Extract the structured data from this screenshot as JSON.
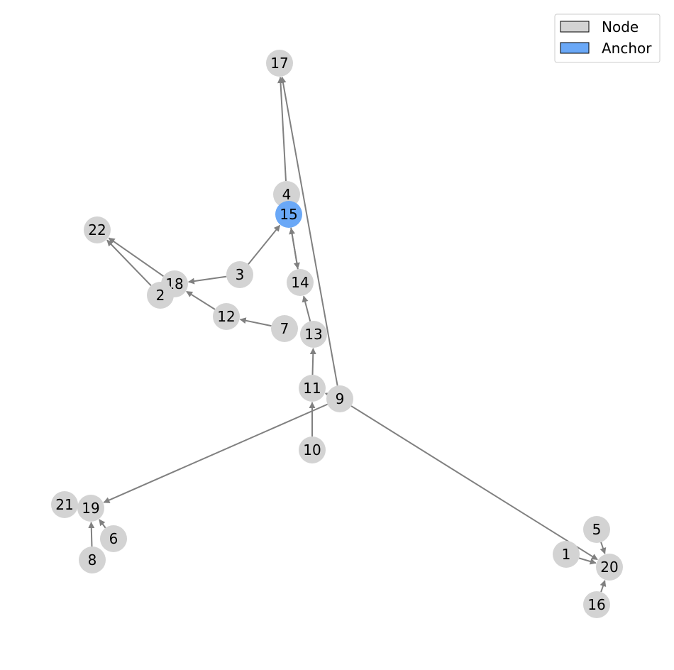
{
  "colors": {
    "node": "#d3d3d3",
    "anchor": "#6aa8f7",
    "edge": "#808080",
    "legend_border": "#cccccc"
  },
  "legend": {
    "position": "top-right",
    "items": [
      {
        "label": "Node",
        "color": "#d3d3d3"
      },
      {
        "label": "Anchor",
        "color": "#6aa8f7"
      }
    ]
  },
  "nodes": [
    {
      "id": "17",
      "type": "node"
    },
    {
      "id": "4",
      "type": "node"
    },
    {
      "id": "15",
      "type": "anchor"
    },
    {
      "id": "22",
      "type": "node"
    },
    {
      "id": "3",
      "type": "node"
    },
    {
      "id": "18",
      "type": "node"
    },
    {
      "id": "2",
      "type": "node"
    },
    {
      "id": "14",
      "type": "node"
    },
    {
      "id": "12",
      "type": "node"
    },
    {
      "id": "7",
      "type": "node"
    },
    {
      "id": "13",
      "type": "node"
    },
    {
      "id": "11",
      "type": "node"
    },
    {
      "id": "9",
      "type": "node"
    },
    {
      "id": "10",
      "type": "node"
    },
    {
      "id": "21",
      "type": "node"
    },
    {
      "id": "19",
      "type": "node"
    },
    {
      "id": "6",
      "type": "node"
    },
    {
      "id": "8",
      "type": "node"
    },
    {
      "id": "5",
      "type": "node"
    },
    {
      "id": "1",
      "type": "node"
    },
    {
      "id": "20",
      "type": "node"
    },
    {
      "id": "16",
      "type": "node"
    }
  ],
  "edges": [
    {
      "from": "4",
      "to": "17"
    },
    {
      "from": "9",
      "to": "17"
    },
    {
      "from": "3",
      "to": "15"
    },
    {
      "from": "15",
      "to": "14"
    },
    {
      "from": "14",
      "to": "15"
    },
    {
      "from": "3",
      "to": "18"
    },
    {
      "from": "18",
      "to": "22"
    },
    {
      "from": "2",
      "to": "22"
    },
    {
      "from": "12",
      "to": "18"
    },
    {
      "from": "7",
      "to": "12"
    },
    {
      "from": "13",
      "to": "14"
    },
    {
      "from": "11",
      "to": "13"
    },
    {
      "from": "9",
      "to": "11"
    },
    {
      "from": "10",
      "to": "11"
    },
    {
      "from": "9",
      "to": "19"
    },
    {
      "from": "9",
      "to": "20"
    },
    {
      "from": "6",
      "to": "19"
    },
    {
      "from": "8",
      "to": "19"
    },
    {
      "from": "5",
      "to": "20"
    },
    {
      "from": "1",
      "to": "20"
    },
    {
      "from": "16",
      "to": "20"
    }
  ]
}
